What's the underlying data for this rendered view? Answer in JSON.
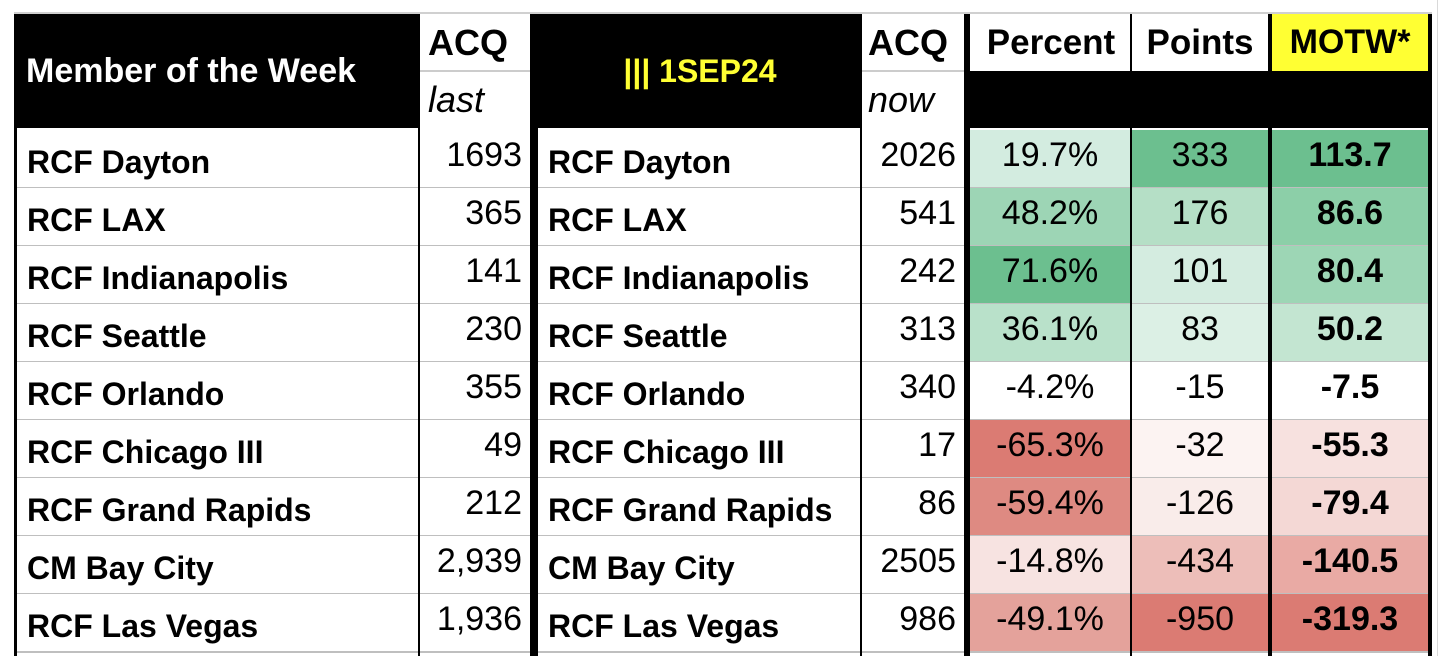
{
  "header": {
    "member_of_week": "Member of the Week",
    "acq_left": "ACQ",
    "last": "last",
    "date_label": "||| 1SEP24",
    "acq_right": "ACQ",
    "now": "now",
    "percent": "Percent",
    "points": "Points",
    "motw": "MOTW*"
  },
  "colors": {
    "header_bg": "#000000",
    "motw_bg": "#ffff33",
    "date_text": "#ffff33",
    "green_strong": "#6cbf8f",
    "red_strong": "#db7b73"
  },
  "rows": [
    {
      "name_left": "RCF Dayton",
      "last": "1693",
      "name_right": "RCF Dayton",
      "now": "2026",
      "percent": "19.7%",
      "points": "333",
      "motw": "113.7",
      "pct_bg": "#d3ece0",
      "pts_bg": "#6cbf8f",
      "motw_bg": "#6cbf8f"
    },
    {
      "name_left": "RCF LAX",
      "last": "365",
      "name_right": "RCF LAX",
      "now": "541",
      "percent": "48.2%",
      "points": "176",
      "motw": "86.6",
      "pct_bg": "#9dd5b5",
      "pts_bg": "#b5dfc6",
      "motw_bg": "#8ccfa8"
    },
    {
      "name_left": "RCF Indianapolis",
      "last": "141",
      "name_right": "RCF Indianapolis",
      "now": "242",
      "percent": "71.6%",
      "points": "101",
      "motw": "80.4",
      "pct_bg": "#6cbf8f",
      "pts_bg": "#d4ece0",
      "motw_bg": "#9dd6b5"
    },
    {
      "name_left": "RCF Seattle",
      "last": "230",
      "name_right": "RCF Seattle",
      "now": "313",
      "percent": "36.1%",
      "points": "83",
      "motw": "50.2",
      "pct_bg": "#b9e1ca",
      "pts_bg": "#dcf0e5",
      "motw_bg": "#c3e5d1"
    },
    {
      "name_left": "RCF Orlando",
      "last": "355",
      "name_right": "RCF Orlando",
      "now": "340",
      "percent": "-4.2%",
      "points": "-15",
      "motw": "-7.5",
      "pct_bg": "#ffffff",
      "pts_bg": "#ffffff",
      "motw_bg": "#ffffff"
    },
    {
      "name_left": "RCF Chicago III",
      "last": "49",
      "name_right": "RCF Chicago III",
      "now": "17",
      "percent": "-65.3%",
      "points": "-32",
      "motw": "-55.3",
      "pct_bg": "#db7b73",
      "pts_bg": "#fcf3f2",
      "motw_bg": "#f7e1df"
    },
    {
      "name_left": "RCF Grand Rapids",
      "last": "212",
      "name_right": "RCF Grand Rapids",
      "now": "86",
      "percent": "-59.4%",
      "points": "-126",
      "motw": "-79.4",
      "pct_bg": "#de8a82",
      "pts_bg": "#f9ecea",
      "motw_bg": "#f4d8d5"
    },
    {
      "name_left": "CM Bay City",
      "last": "2,939",
      "name_right": "CM Bay City",
      "now": "2505",
      "percent": "-14.8%",
      "points": "-434",
      "motw": "-140.5",
      "pct_bg": "#f7e3e1",
      "pts_bg": "#edbeb9",
      "motw_bg": "#e9aaa4"
    },
    {
      "name_left": "RCF Las Vegas",
      "last": "1,936",
      "name_right": "RCF Las Vegas",
      "now": "986",
      "percent": "-49.1%",
      "points": "-950",
      "motw": "-319.3",
      "pct_bg": "#e4a29b",
      "pts_bg": "#db7b73",
      "motw_bg": "#db7b73"
    }
  ]
}
